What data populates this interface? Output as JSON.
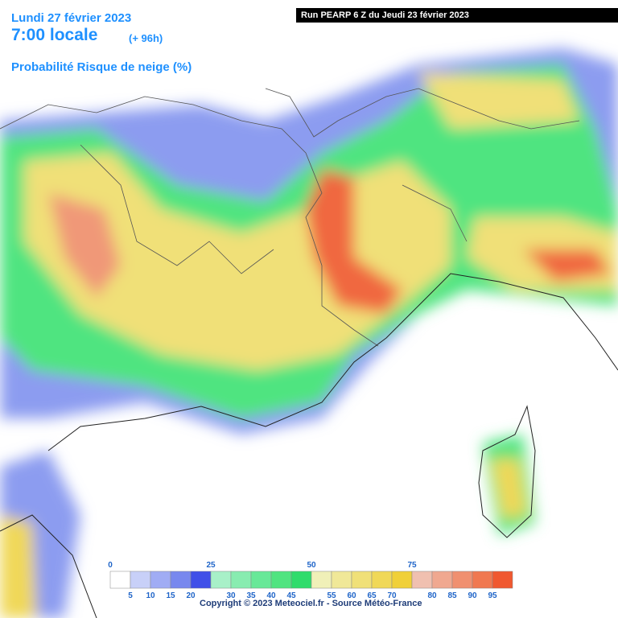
{
  "header": {
    "date": "Lundi 27 février 2023",
    "time": "7:00 locale",
    "lead": "(+ 96h)",
    "title": "Probabilité Risque de neige (%)",
    "run": "Run PEARP 6 Z du Jeudi 23 février 2023"
  },
  "legend": {
    "entries": [
      {
        "value": 0,
        "color": "#ffffff"
      },
      {
        "value": 5,
        "color": "#c8d0f8"
      },
      {
        "value": 10,
        "color": "#a0acf4"
      },
      {
        "value": 15,
        "color": "#7888ee"
      },
      {
        "value": 20,
        "color": "#4050e8"
      },
      {
        "value": 25,
        "color": "#a8f0c8"
      },
      {
        "value": 30,
        "color": "#88ecb0"
      },
      {
        "value": 35,
        "color": "#68e898"
      },
      {
        "value": 40,
        "color": "#50e480"
      },
      {
        "value": 45,
        "color": "#30dc6c"
      },
      {
        "value": 50,
        "color": "#f0f0b8"
      },
      {
        "value": 55,
        "color": "#f0e898"
      },
      {
        "value": 60,
        "color": "#f0e078"
      },
      {
        "value": 65,
        "color": "#f0d858"
      },
      {
        "value": 70,
        "color": "#f0d038"
      },
      {
        "value": 75,
        "color": "#f0c0b0"
      },
      {
        "value": 80,
        "color": "#f0a890"
      },
      {
        "value": 85,
        "color": "#f09070"
      },
      {
        "value": 90,
        "color": "#f07850"
      },
      {
        "value": 95,
        "color": "#f05830"
      }
    ]
  },
  "copyright": "Copyright © 2023 Meteociel.fr - Source Météo-France"
}
